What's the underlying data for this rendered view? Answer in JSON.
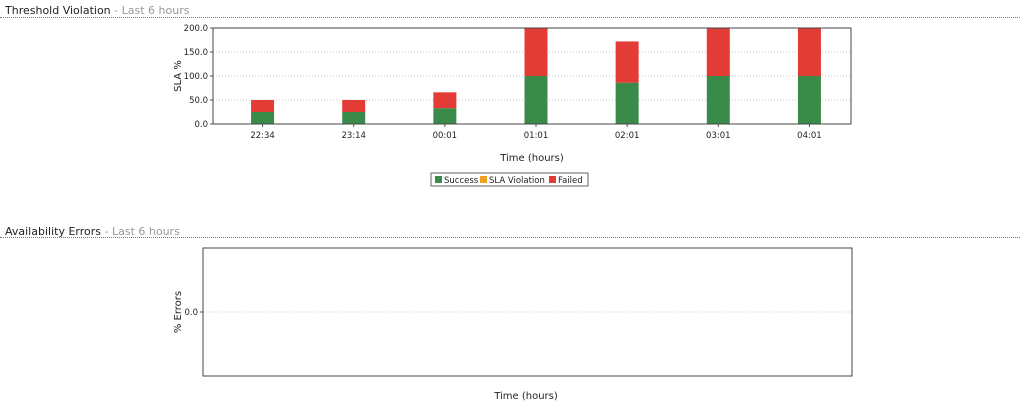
{
  "sections": [
    {
      "title": "Threshold Violation",
      "subtitle": "Last 6 hours"
    },
    {
      "title": "Availability Errors",
      "subtitle": "Last 6 hours"
    }
  ],
  "separator": " - ",
  "chart_data": [
    {
      "type": "bar",
      "stacked": true,
      "categories": [
        "22:34",
        "23:14",
        "00:01",
        "01:01",
        "02:01",
        "03:01",
        "04:01"
      ],
      "series": [
        {
          "name": "Success",
          "color": "#3a8a4a",
          "values": [
            25,
            25,
            33,
            100,
            86,
            100,
            100
          ]
        },
        {
          "name": "SLA Violation",
          "color": "#f0a020",
          "values": [
            0,
            0,
            0,
            0,
            0,
            0,
            0
          ]
        },
        {
          "name": "Failed",
          "color": "#e33b35",
          "values": [
            25,
            25,
            33,
            100,
            86,
            100,
            100
          ]
        }
      ],
      "xlabel": "Time (hours)",
      "ylabel": "SLA %",
      "ylim": [
        0,
        200
      ],
      "yticks": [
        "0.0",
        "50.0",
        "100.0",
        "150.0",
        "200.0"
      ],
      "ytick_values": [
        0,
        50,
        100,
        150,
        200
      ],
      "grid": true,
      "legend": "bottom-center"
    },
    {
      "type": "bar",
      "categories": [],
      "series": [],
      "xlabel": "Time (hours)",
      "ylabel": "% Errors",
      "yticks": [
        "0.0"
      ],
      "ytick_values": [
        0
      ],
      "grid": true
    }
  ]
}
